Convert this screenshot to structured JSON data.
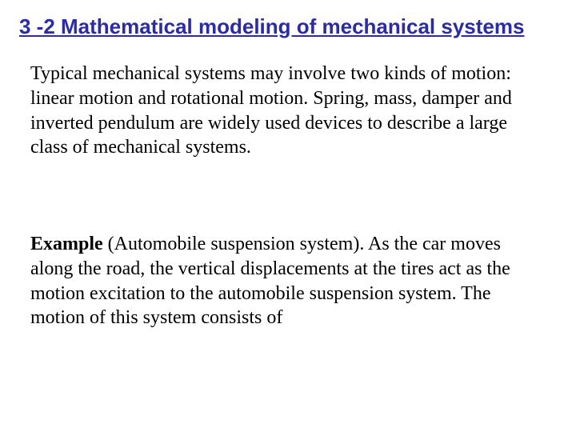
{
  "colors": {
    "title": "#2b2ba8",
    "body": "#000000",
    "background": "#ffffff"
  },
  "typography": {
    "title_font": "Comic Sans MS",
    "title_size_pt": 20,
    "body_font": "Times New Roman",
    "body_size_pt": 18
  },
  "title": "3 -2 Mathematical modeling of mechanical systems",
  "paragraph1": "Typical mechanical systems may involve two kinds of motion: linear motion and rotational motion. Spring, mass, damper and inverted pendulum are widely used devices to describe a large class of mechanical systems.",
  "example_label": "Example",
  "paragraph2_rest": " (Automobile suspension system). As the car moves along the road, the vertical displacements at the tires act as the motion excitation to the automobile suspension system. The motion of this system consists of"
}
